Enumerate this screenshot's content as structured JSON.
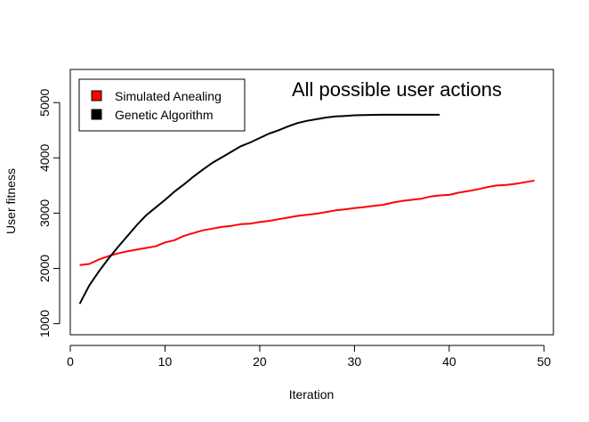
{
  "chart_data": {
    "type": "line",
    "title": "",
    "xlabel": "Iteration",
    "ylabel": "User fitness",
    "xlim": [
      0,
      51
    ],
    "ylim": [
      800,
      5600
    ],
    "x_ticks": [
      0,
      10,
      20,
      30,
      40,
      50
    ],
    "y_ticks": [
      1000,
      2000,
      3000,
      4000,
      5000
    ],
    "x_tick_labels": [
      "0",
      "10",
      "20",
      "30",
      "40",
      "50"
    ],
    "y_tick_labels": [
      "1000",
      "2000",
      "3000",
      "4000",
      "5000"
    ],
    "grid": false,
    "legend_position": "top-left",
    "annotation": "All possible user actions",
    "series": [
      {
        "name": "Simulated Anealing",
        "color": "#ff0000",
        "x": [
          1,
          2,
          3,
          4,
          5,
          6,
          7,
          8,
          9,
          10,
          11,
          12,
          13,
          14,
          15,
          16,
          17,
          18,
          19,
          20,
          21,
          22,
          23,
          24,
          25,
          26,
          27,
          28,
          29,
          30,
          31,
          32,
          33,
          34,
          35,
          36,
          37,
          38,
          39,
          40,
          41,
          42,
          43,
          44,
          45,
          46,
          47,
          48,
          49
        ],
        "values": [
          2060,
          2080,
          2160,
          2220,
          2270,
          2310,
          2340,
          2370,
          2400,
          2470,
          2510,
          2590,
          2640,
          2690,
          2720,
          2750,
          2770,
          2800,
          2810,
          2840,
          2860,
          2890,
          2920,
          2950,
          2970,
          2990,
          3020,
          3050,
          3070,
          3090,
          3110,
          3130,
          3150,
          3190,
          3220,
          3240,
          3260,
          3300,
          3320,
          3330,
          3370,
          3400,
          3430,
          3470,
          3500,
          3510,
          3530,
          3560,
          3590
        ]
      },
      {
        "name": "Genetic Algorithm",
        "color": "#000000",
        "x": [
          1,
          2,
          3,
          4,
          5,
          6,
          7,
          8,
          9,
          10,
          11,
          12,
          13,
          14,
          15,
          16,
          17,
          18,
          19,
          20,
          21,
          22,
          23,
          24,
          25,
          26,
          27,
          28,
          29,
          30,
          31,
          32,
          33,
          34,
          35,
          36,
          37,
          38,
          39
        ],
        "values": [
          1360,
          1690,
          1940,
          2170,
          2380,
          2580,
          2780,
          2960,
          3100,
          3240,
          3390,
          3520,
          3660,
          3790,
          3910,
          4010,
          4110,
          4210,
          4280,
          4360,
          4440,
          4500,
          4570,
          4630,
          4670,
          4700,
          4730,
          4750,
          4760,
          4770,
          4775,
          4778,
          4780,
          4780,
          4780,
          4780,
          4780,
          4780,
          4780
        ]
      }
    ]
  }
}
